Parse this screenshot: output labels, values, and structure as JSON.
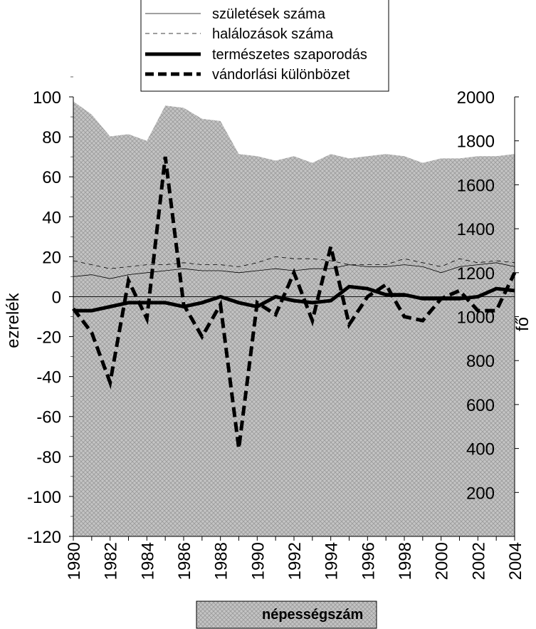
{
  "chart_data": {
    "type": "line",
    "x": [
      1980,
      1981,
      1982,
      1983,
      1984,
      1985,
      1986,
      1987,
      1988,
      1989,
      1990,
      1991,
      1992,
      1993,
      1994,
      1995,
      1996,
      1997,
      1998,
      1999,
      2000,
      2001,
      2002,
      2003,
      2004
    ],
    "x_tick_labels": [
      "1980",
      "1982",
      "1984",
      "1986",
      "1988",
      "1990",
      "1992",
      "1994",
      "1996",
      "1998",
      "2000",
      "2002",
      "2004"
    ],
    "ylabel": "ezrelék",
    "ylim": [
      -120,
      100
    ],
    "y_ticks": [
      "100",
      "80",
      "60",
      "40",
      "20",
      "0",
      "-20",
      "-40",
      "-60",
      "-80",
      "-100",
      "-120"
    ],
    "y2label": "fő",
    "y2lim": [
      0,
      2000
    ],
    "y2_ticks": [
      "2000",
      "1800",
      "1600",
      "1400",
      "1200",
      "1000",
      "800",
      "600",
      "400",
      "200"
    ],
    "grid": false,
    "legend_top": "top-center",
    "legend_bottom": "bottom-center",
    "series": [
      {
        "name": "születések száma",
        "style": "thin-solid",
        "axis": "left",
        "values": [
          10,
          11,
          9,
          11,
          12,
          13,
          14,
          13,
          13,
          12,
          13,
          14,
          13,
          14,
          14,
          16,
          15,
          15,
          16,
          15,
          12,
          15,
          16,
          17,
          15
        ]
      },
      {
        "name": "halálozások száma",
        "style": "thin-dashed",
        "axis": "left",
        "values": [
          18,
          16,
          14,
          15,
          16,
          16,
          17,
          16,
          16,
          15,
          17,
          20,
          19,
          19,
          18,
          16,
          16,
          16,
          19,
          17,
          15,
          19,
          17,
          18,
          17
        ]
      },
      {
        "name": "természetes szaporodás",
        "style": "thick-solid",
        "axis": "left",
        "values": [
          -7,
          -7,
          -5,
          -3,
          -3,
          -3,
          -5,
          -3,
          0,
          -3,
          -5,
          0,
          -2,
          -3,
          -2,
          5,
          4,
          1,
          1,
          -1,
          -1,
          -1,
          0,
          4,
          3
        ]
      },
      {
        "name": "vándorlási különbözet",
        "style": "thick-dashed",
        "axis": "left",
        "values": [
          -6,
          -18,
          -43,
          8,
          -11,
          70,
          -4,
          -20,
          -4,
          -76,
          -3,
          -9,
          12,
          -12,
          25,
          -14,
          0,
          6,
          -10,
          -12,
          -1,
          3,
          -7,
          -7,
          12
        ]
      },
      {
        "name": "népességszám",
        "style": "area",
        "axis": "right",
        "values": [
          1980,
          1920,
          1820,
          1830,
          1800,
          1960,
          1950,
          1900,
          1890,
          1740,
          1730,
          1710,
          1730,
          1700,
          1740,
          1720,
          1730,
          1740,
          1730,
          1700,
          1720,
          1720,
          1730,
          1730,
          1740
        ]
      }
    ]
  },
  "colors": {
    "area_fill": "#bdbdbd",
    "line": "#000000"
  }
}
